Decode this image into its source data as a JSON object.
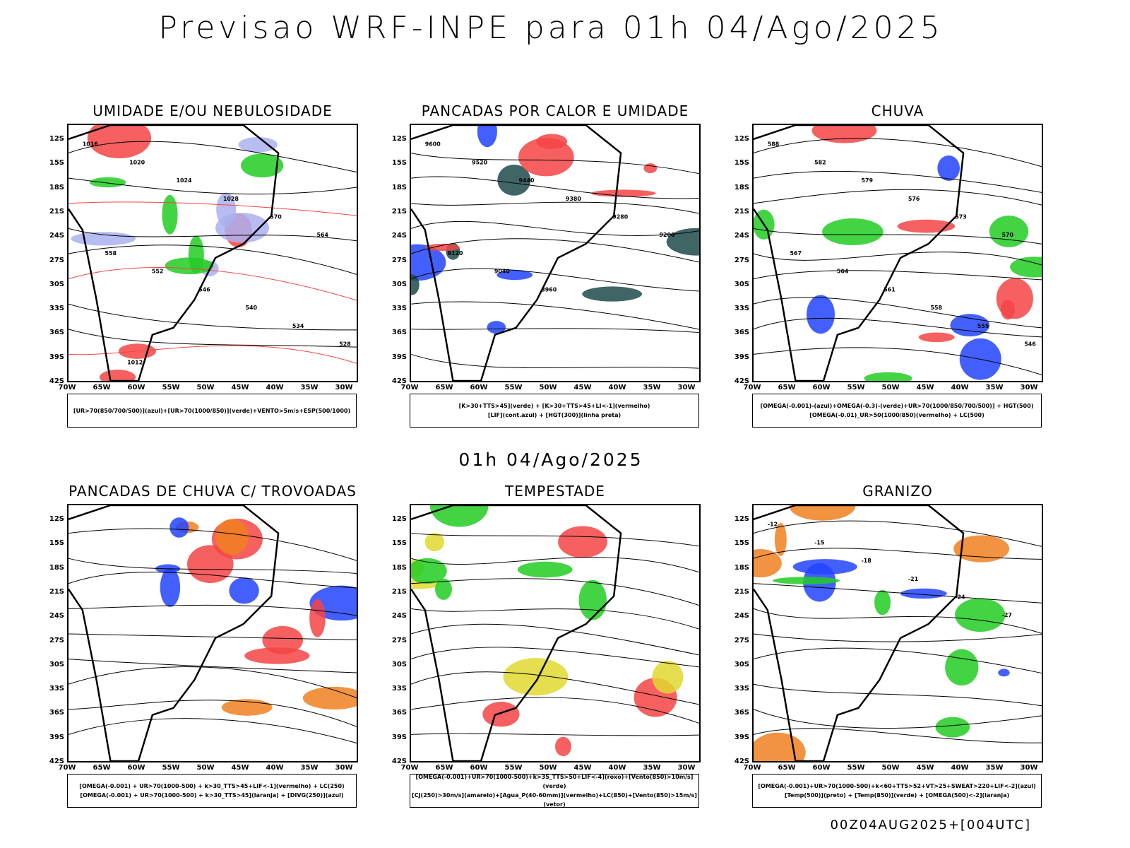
{
  "title": "Previsao WRF-INPE  para 01h 04/Ago/2025",
  "mid_label": "01h 04/Ago/2025",
  "footer": "00Z04AUG2025+[004UTC]",
  "axes": {
    "lat_ticks": [
      "12S",
      "15S",
      "18S",
      "21S",
      "24S",
      "27S",
      "30S",
      "33S",
      "36S",
      "39S",
      "42S"
    ],
    "lon_ticks": [
      "70W",
      "65W",
      "60W",
      "55W",
      "50W",
      "45W",
      "40W",
      "35W",
      "30W"
    ]
  },
  "colors": {
    "red": "#f44444",
    "green": "#22cc22",
    "blue": "#2244ff",
    "lavender": "#aab0f0",
    "darkteal": "#1e4a4a",
    "yellow": "#e0d830",
    "orange": "#f08020"
  },
  "panels": [
    {
      "title": "UMIDADE E/OU NEBULOSIDADE",
      "legend": [
        "[UR>70(850/700/500)](azul)+[UR>70(1000/850)](verde)+VENTO>5m/s+ESP(500/1000)"
      ],
      "labels": [
        "1016",
        "1020",
        "1024",
        "1028",
        "570",
        "564",
        "558",
        "552",
        "546",
        "540",
        "534",
        "528",
        "1012"
      ]
    },
    {
      "title": "PANCADAS POR CALOR E UMIDADE",
      "legend": [
        "[K>30+TTS>45](verde) + [K>30+TTS>45+LI<-1](vermelho)",
        "[LIF](cont.azul) + [HGT(300)](linha preta)"
      ],
      "labels": [
        "9600",
        "9520",
        "9440",
        "9380",
        "9280",
        "9200",
        "9120",
        "9040",
        "8960"
      ]
    },
    {
      "title": "CHUVA",
      "legend": [
        "[OMEGA(-0.001)-(azul)+OMEGA(-0.3)-(verde)+UR>70(1000/850/700/500)] + HGT(500)",
        "[OMEGA(-0.01)_UR>50(1000/850)(vermelho) + LC(500)"
      ],
      "labels": [
        "588",
        "582",
        "579",
        "576",
        "573",
        "570",
        "567",
        "564",
        "561",
        "558",
        "555",
        "546"
      ]
    },
    {
      "title": "PANCADAS DE CHUVA C/ TROVOADAS",
      "legend": [
        "[OMEGA(-0.001) + UR>70(1000-500) + k>30_TTS>45+LIF<-1](vermelho) + LC(250)",
        "[OMEGA(-0.001) + UR>70(1000-500) + k>30_TTS>45](laranja) + [DIVG(250)](azul)"
      ],
      "labels": []
    },
    {
      "title": "TEMPESTADE",
      "legend": [
        "[OMEGA(-0.001)+UR>70(1000-500)+k>35_TTS>50+LIF<-4](roxo)+[Vento(850)>10m/s](verde)",
        "[CJ(250)>30m/s](amarelo)+[Agua_P(40-60mm)](vermelho)+LC(850)+[Vento(850)>15m/s](vetor)"
      ],
      "labels": []
    },
    {
      "title": "GRANIZO",
      "legend": [
        "[OMEGA(-0.001)+UR>70(1000-500)+k<60+TTS>52+VT>25+SWEAT>220+LIF<-2](azul)",
        "[Temp(500)](preto) + [Temp(850)](verde) + [OMEGA(500)<-2](laranja)"
      ],
      "labels": [
        "-12",
        "-15",
        "-18",
        "-21",
        "-24",
        "-27"
      ]
    }
  ]
}
